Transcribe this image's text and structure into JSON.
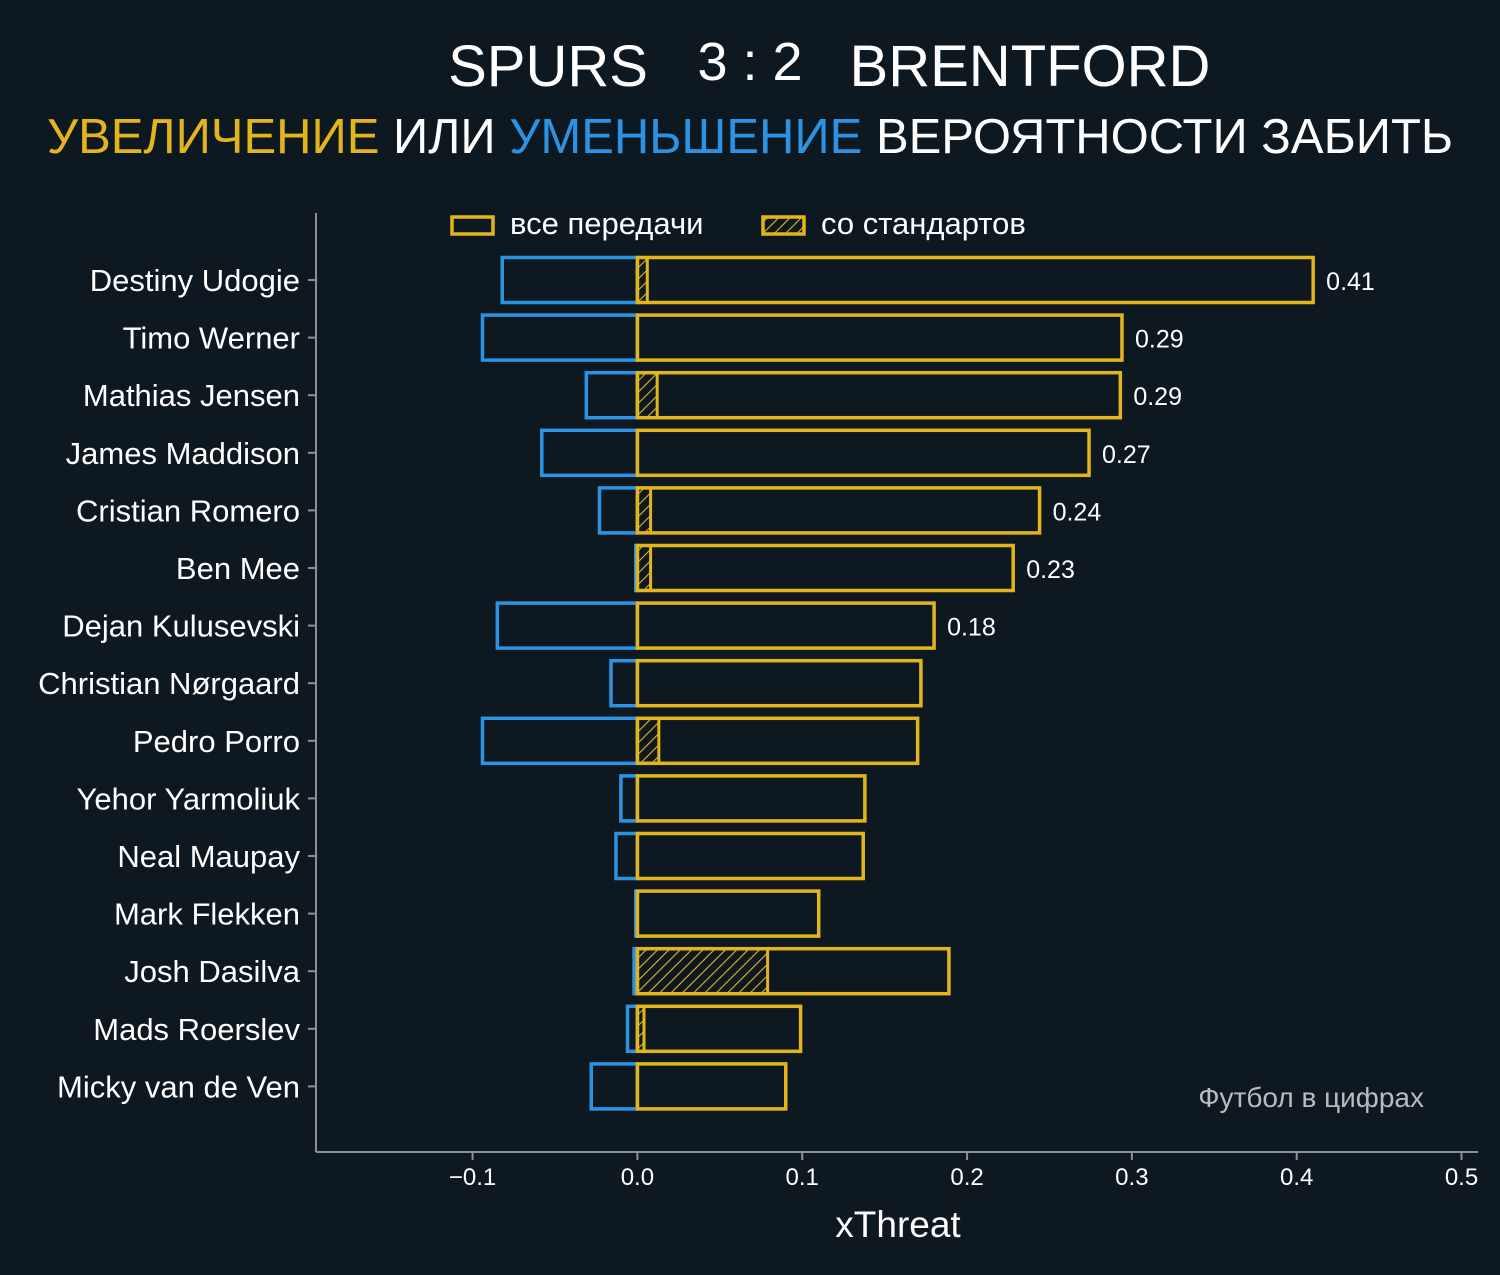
{
  "header": {
    "team_home": "SPURS",
    "score": "3 : 2",
    "team_away": "BRENTFORD",
    "subtitle_increase": "УВЕЛИЧЕНИЕ",
    "subtitle_or": " ИЛИ ",
    "subtitle_decrease": "УМЕНЬШЕНИЕ",
    "subtitle_rest": " ВЕРОЯТНОСТИ ЗАБИТЬ"
  },
  "colors": {
    "background": "#0e1821",
    "positive": "#e3b51d",
    "negative": "#2b93e2",
    "text": "#ffffff",
    "axis": "#8a9299",
    "watermark": "#b8bcc0"
  },
  "watermark": "Футбол в цифрах",
  "chart_data": {
    "type": "bar",
    "orientation": "horizontal",
    "xlabel": "xThreat",
    "xlim": [
      -0.195,
      0.51
    ],
    "xticks": [
      -0.1,
      0.0,
      0.1,
      0.2,
      0.3,
      0.4,
      0.5
    ],
    "xtick_labels": [
      "−0.1",
      "0.0",
      "0.1",
      "0.2",
      "0.3",
      "0.4",
      "0.5"
    ],
    "legend": {
      "placement": "top-center",
      "entries": [
        "все передачи",
        "со стандартов"
      ]
    },
    "categories": [
      "Destiny Udogie",
      "Timo Werner",
      "Mathias Jensen",
      "James Maddison",
      "Cristian Romero",
      "Ben Mee",
      "Dejan Kulusevski",
      "Christian Nørgaard",
      "Pedro Porro",
      "Yehor Yarmoliuk",
      "Neal Maupay",
      "Mark Flekken",
      "Josh Dasilva",
      "Mads Roerslev",
      "Micky van de Ven"
    ],
    "series": [
      {
        "name": "все передачи",
        "positive": [
          0.41,
          0.294,
          0.293,
          0.274,
          0.244,
          0.228,
          0.18,
          0.172,
          0.17,
          0.138,
          0.137,
          0.11,
          0.189,
          0.099,
          0.09
        ],
        "negative": [
          -0.082,
          -0.094,
          -0.031,
          -0.058,
          -0.023,
          -0.001,
          -0.085,
          -0.016,
          -0.094,
          -0.01,
          -0.013,
          -0.001,
          -0.002,
          -0.006,
          -0.028
        ]
      },
      {
        "name": "со стандартов",
        "positive": [
          0.006,
          0.0,
          0.012,
          0.0,
          0.008,
          0.008,
          0.0,
          0.0,
          0.013,
          0.0,
          0.0,
          0.0,
          0.079,
          0.004,
          0.0
        ]
      }
    ],
    "value_labels": [
      "0.41",
      "0.29",
      "0.29",
      "0.27",
      "0.24",
      "0.23",
      "0.18",
      "",
      "",
      "",
      "",
      "",
      "",
      "",
      ""
    ]
  }
}
